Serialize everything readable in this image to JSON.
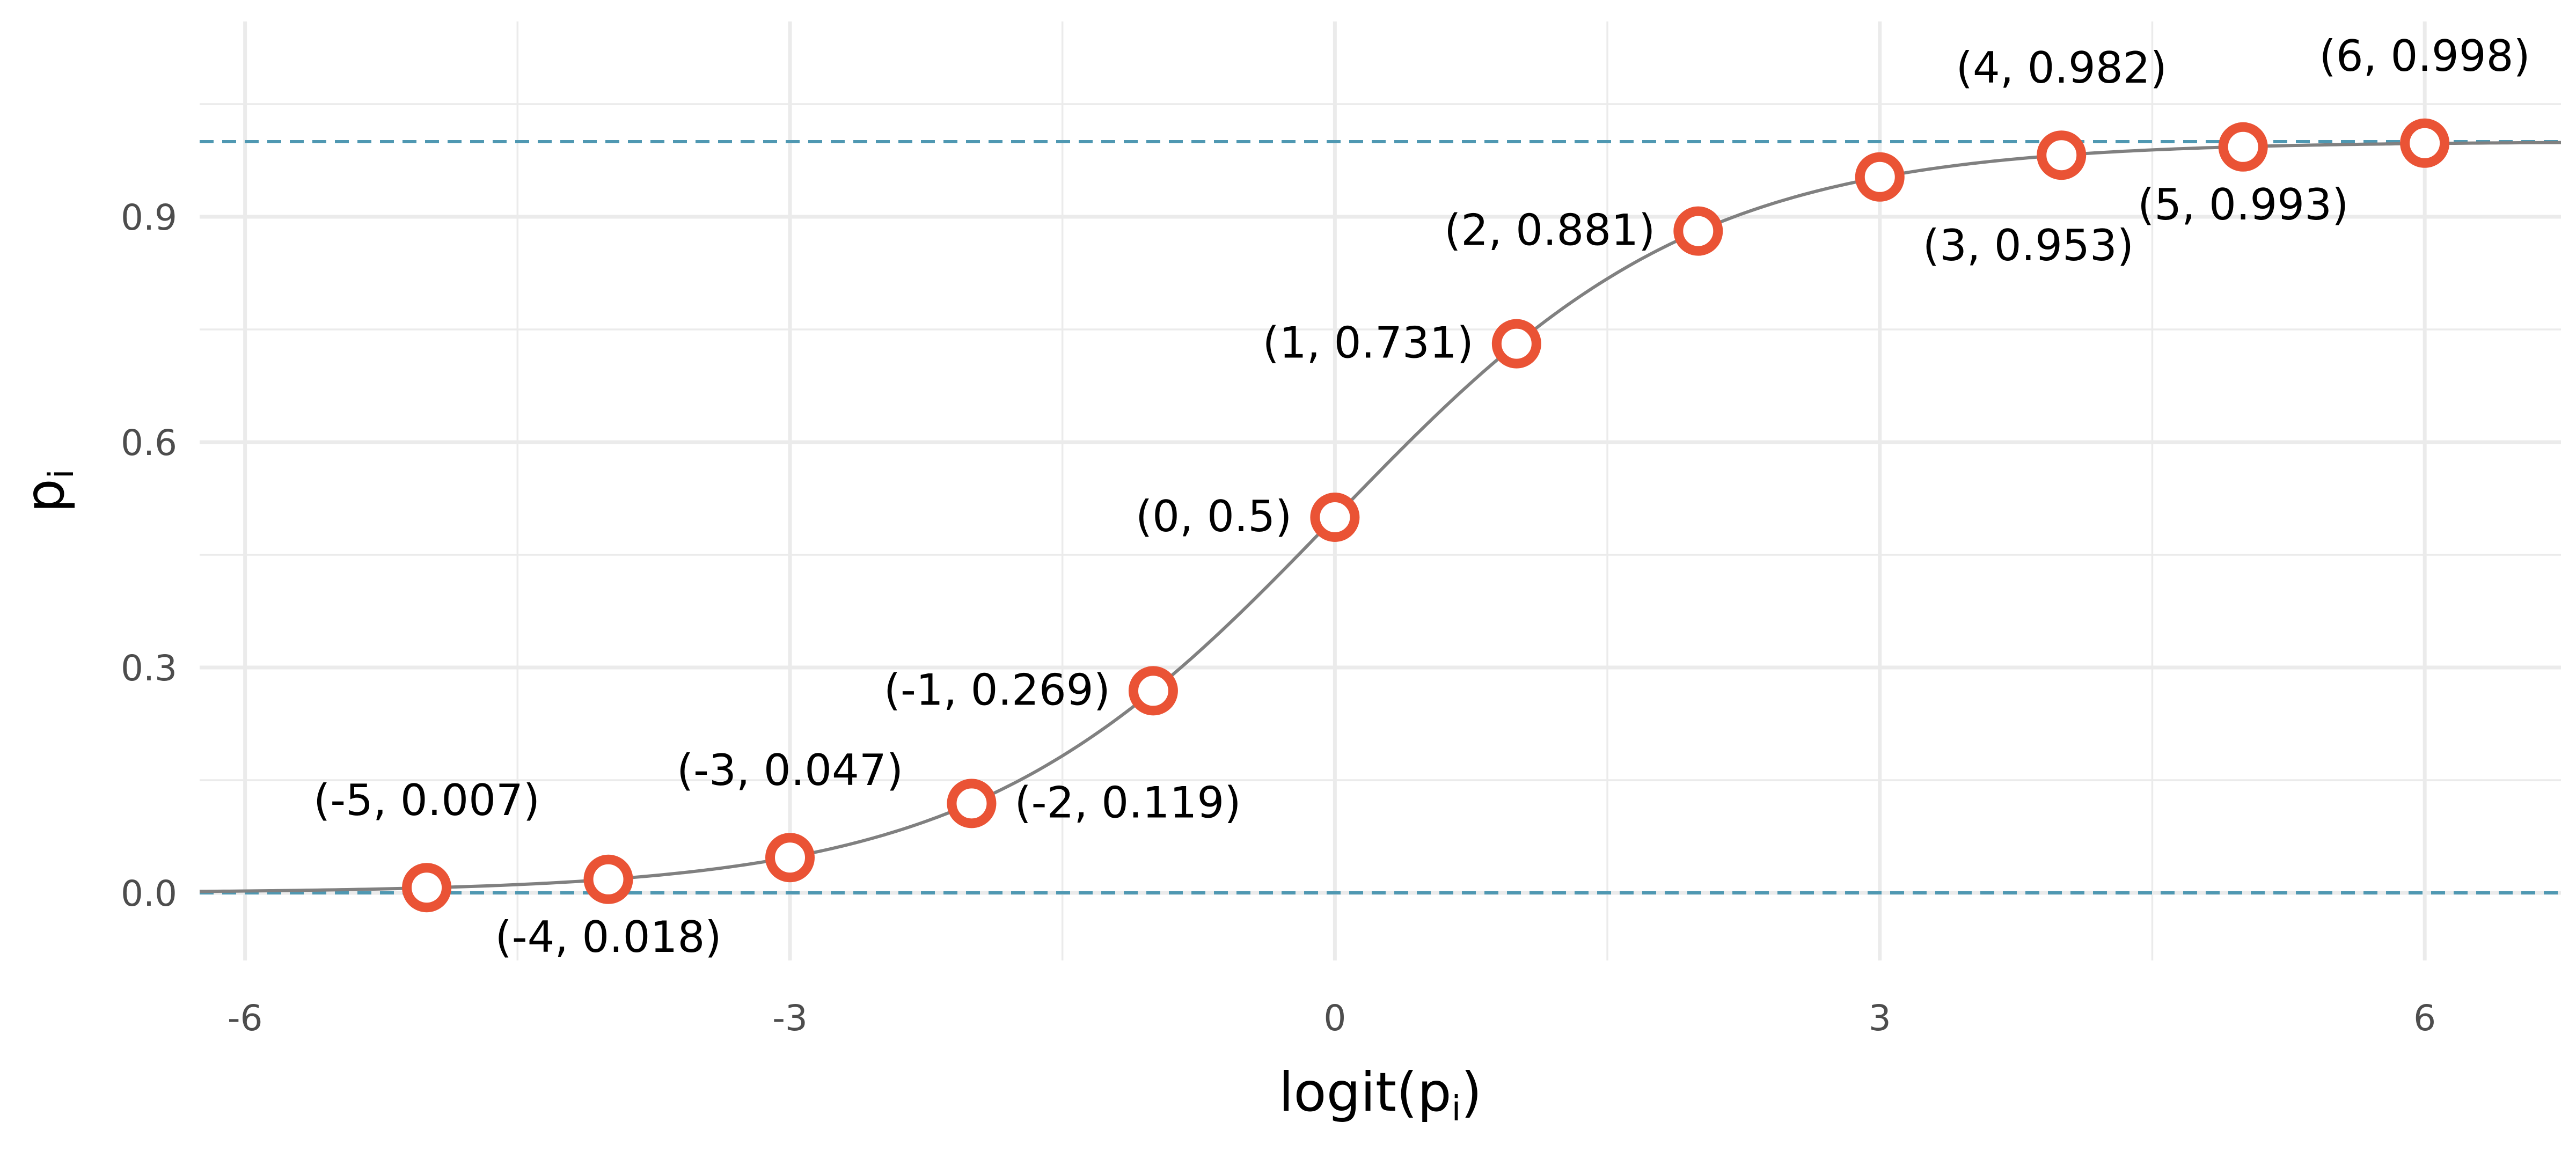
{
  "chart_data": {
    "type": "scatter",
    "title": "",
    "xlabel": "logit(p",
    "xlabel_sub": "i",
    "xlabel_close": ")",
    "ylabel": "p",
    "ylabel_sub": "i",
    "xlim": [
      -6.25,
      6.75
    ],
    "ylim": [
      -0.09,
      1.16
    ],
    "x_ticks": [
      -6,
      -3,
      0,
      3,
      6
    ],
    "x_tick_labels": [
      "-6",
      "-3",
      "0",
      "3",
      "6"
    ],
    "y_ticks": [
      0.0,
      0.3,
      0.6,
      0.9
    ],
    "y_tick_labels": [
      "0.0",
      "0.3",
      "0.6",
      "0.9"
    ],
    "grid": true,
    "legend": "none",
    "curve": {
      "function": "logistic",
      "color": "#808080"
    },
    "hlines": [
      {
        "y": 0,
        "style": "dashed",
        "color": "#4f98b2"
      },
      {
        "y": 1,
        "style": "dashed",
        "color": "#4f98b2"
      }
    ],
    "points": {
      "color": "#ea5335",
      "x": [
        -5,
        -4,
        -3,
        -2,
        -1,
        0,
        1,
        2,
        3,
        4,
        5,
        6
      ],
      "y": [
        0.007,
        0.018,
        0.047,
        0.119,
        0.269,
        0.5,
        0.731,
        0.881,
        0.953,
        0.982,
        0.993,
        0.998
      ],
      "labels": [
        "(-5, 0.007)",
        "(-4, 0.018)",
        "(-3, 0.047)",
        "(-2, 0.119)",
        "(-1, 0.269)",
        "(0, 0.5)",
        "(1, 0.731)",
        "(2, 0.881)",
        "(3, 0.953)",
        "(4, 0.982)",
        "(5, 0.993)",
        "(6, 0.998)"
      ],
      "label_positions": [
        "above",
        "below",
        "above",
        "right",
        "left",
        "left",
        "left",
        "left",
        "below-right",
        "above",
        "below",
        "above"
      ]
    }
  }
}
